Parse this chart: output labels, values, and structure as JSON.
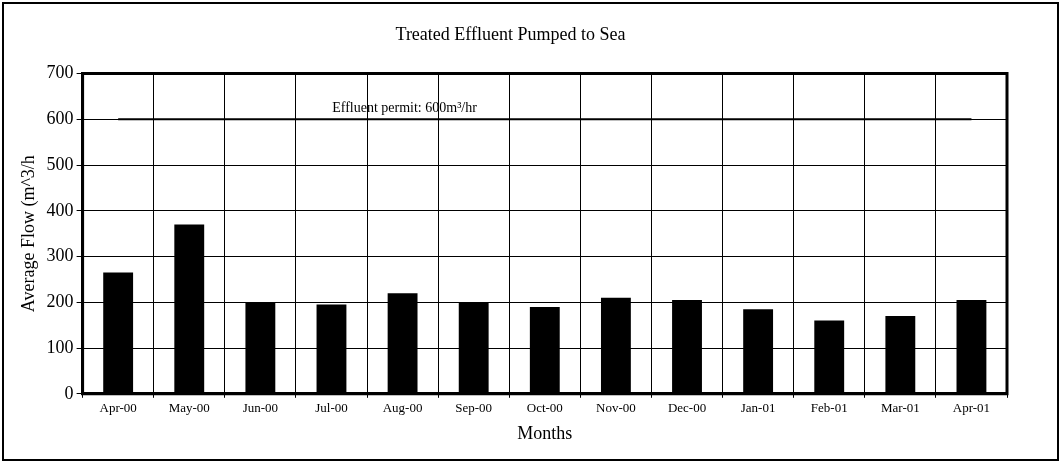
{
  "chart_data": {
    "type": "bar",
    "title": "Treated Effluent Pumped to Sea",
    "xlabel": "Months",
    "ylabel": "Average Flow (m^3/h",
    "categories": [
      "Apr-00",
      "May-00",
      "Jun-00",
      "Jul-00",
      "Aug-00",
      "Sep-00",
      "Oct-00",
      "Nov-00",
      "Dec-00",
      "Jan-01",
      "Feb-01",
      "Mar-01",
      "Apr-01"
    ],
    "values": [
      265,
      370,
      200,
      195,
      220,
      200,
      190,
      210,
      205,
      185,
      160,
      170,
      205
    ],
    "color": "#000000",
    "ylim": [
      0,
      700
    ],
    "yticks": [
      0,
      100,
      200,
      300,
      400,
      500,
      600,
      700
    ],
    "grid": true,
    "legend": false,
    "ref_lines": [
      {
        "axis": "y",
        "value": 600,
        "label": "Effluent permit: 600m³/hr",
        "color": "#000000"
      }
    ]
  }
}
